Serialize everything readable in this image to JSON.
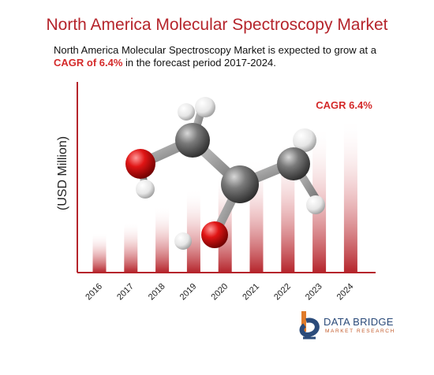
{
  "header": {
    "title": "North America Molecular Spectroscopy Market",
    "subtitle_part1": "North America Molecular Spectroscopy Market is expected to grow at a ",
    "subtitle_highlight": "CAGR of 6.4%",
    "subtitle_part2": " in the forecast period 2017-2024."
  },
  "chart_data": {
    "type": "bar",
    "categories": [
      "2016",
      "2017",
      "2018",
      "2019",
      "2020",
      "2021",
      "2022",
      "2023",
      "2024"
    ],
    "values": [
      26,
      33,
      43,
      54,
      64,
      74,
      85,
      95,
      100
    ],
    "ylabel": "(USD Million)",
    "annotation": "CAGR 6.4%",
    "ylim": [
      0,
      100
    ],
    "grid": false,
    "colors": {
      "bar": "#b5242b",
      "axis": "#b5242b",
      "annotation": "#d42a2a"
    }
  },
  "brand": {
    "name": "DATA BRIDGE",
    "tagline": "MARKET RESEARCH",
    "colors": {
      "primary": "#2b4b7a",
      "accent": "#e07b2a"
    }
  }
}
